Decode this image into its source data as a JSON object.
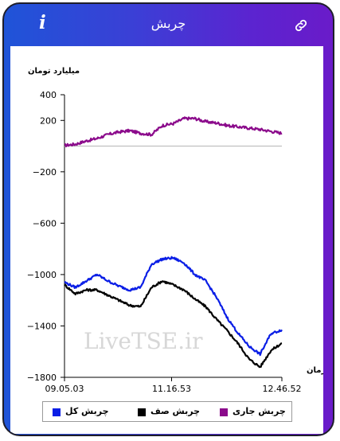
{
  "app": {
    "title": "چربش",
    "info_label": "i"
  },
  "colors": {
    "series_current": "#8b0a8b",
    "series_queue": "#000000",
    "series_total": "#0a1ee6",
    "axis": "#000000"
  },
  "chart_data": {
    "type": "line",
    "ylabel": "میلیارد تومان",
    "xlabel": "زمان",
    "ylim": [
      -1800,
      400
    ],
    "yticks": [
      400,
      200,
      -200,
      -600,
      -1000,
      -1400,
      -1800
    ],
    "ytick_labels": [
      "400",
      "200",
      "−200",
      "−600",
      "−1000",
      "−1400",
      "−1800"
    ],
    "xticks": [
      "09.05.03",
      "11.16.53",
      "12.46.52"
    ],
    "x": [
      0,
      5,
      10,
      15,
      20,
      25,
      30,
      35,
      40,
      45,
      50,
      55,
      60,
      65,
      70,
      75,
      80,
      85,
      90,
      95,
      100
    ],
    "watermark": "LiveTSE.ir",
    "legend_position": "bottom",
    "series": [
      {
        "name": "چربش جاری",
        "key": "current",
        "values": [
          5,
          15,
          40,
          60,
          90,
          110,
          120,
          100,
          90,
          160,
          175,
          215,
          215,
          190,
          180,
          160,
          150,
          140,
          130,
          115,
          100
        ]
      },
      {
        "name": "چربش صف",
        "key": "queue",
        "values": [
          -1080,
          -1150,
          -1120,
          -1120,
          -1160,
          -1200,
          -1240,
          -1250,
          -1100,
          -1050,
          -1080,
          -1120,
          -1190,
          -1250,
          -1350,
          -1440,
          -1540,
          -1660,
          -1720,
          -1590,
          -1535
        ]
      },
      {
        "name": "چربش کل",
        "key": "total",
        "values": [
          -1060,
          -1100,
          -1050,
          -1000,
          -1050,
          -1090,
          -1120,
          -1100,
          -920,
          -880,
          -870,
          -910,
          -1000,
          -1050,
          -1180,
          -1340,
          -1460,
          -1560,
          -1620,
          -1460,
          -1430
        ]
      }
    ]
  }
}
